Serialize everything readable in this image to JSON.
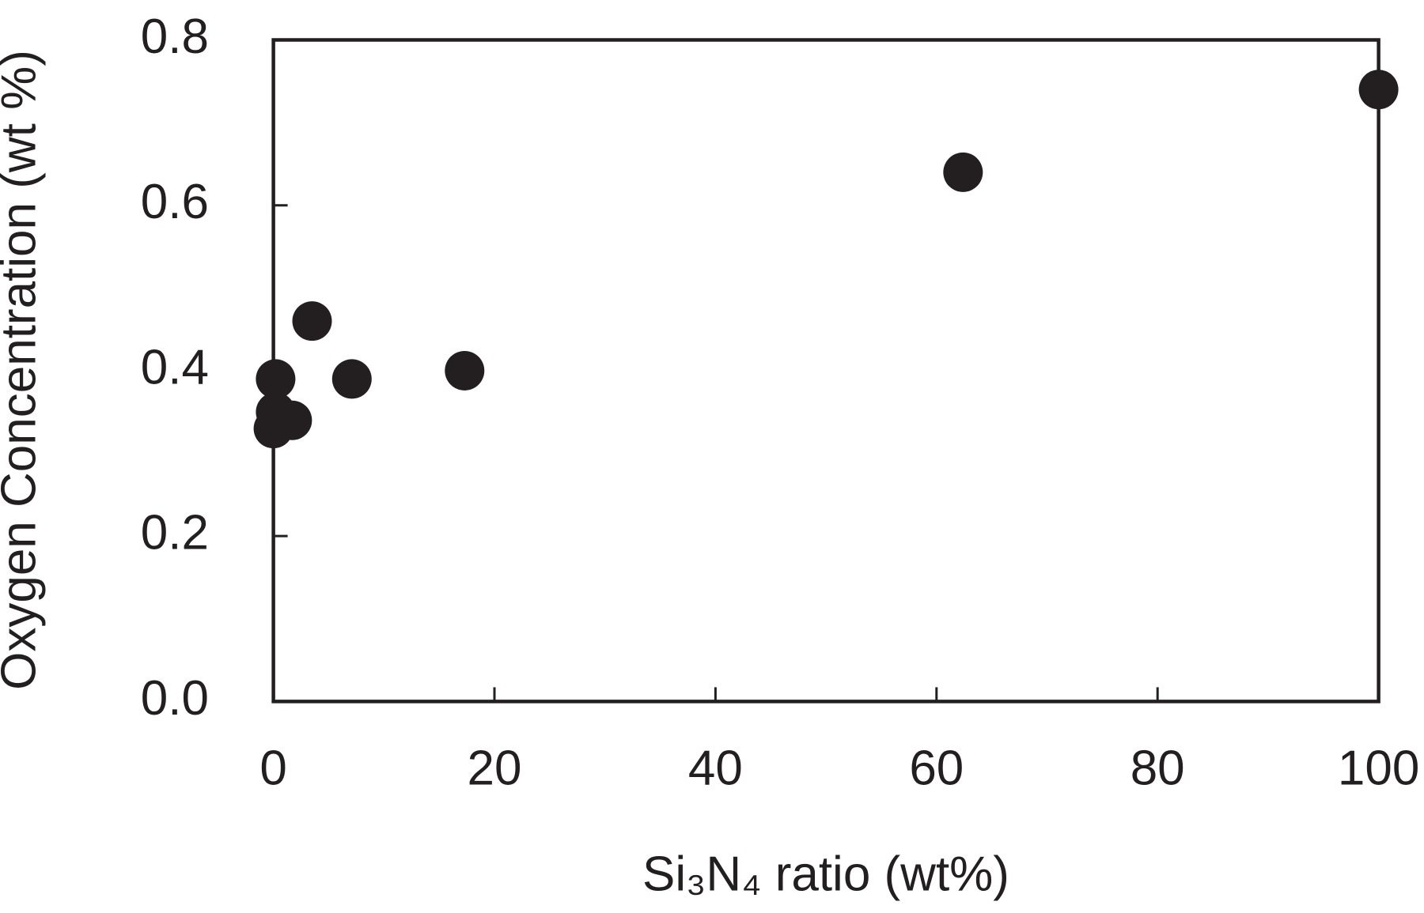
{
  "chart_data": {
    "type": "scatter",
    "x_label": "Si₃N₄ ratio (wt%)",
    "y_label": "Oxygen Concentration (wt %)",
    "series": [
      {
        "color": "#231f20",
        "x": [
          100,
          62.4,
          3.5,
          7.1,
          17.3,
          0.2,
          0.2,
          1.7,
          0
        ],
        "values": [
          0.74,
          0.64,
          0.46,
          0.39,
          0.4,
          0.39,
          0.35,
          0.34,
          0.33
        ]
      }
    ],
    "xlim": [
      0,
      100
    ],
    "xticks": [
      0,
      20,
      40,
      60,
      80,
      100
    ],
    "ylim": [
      0,
      0.8
    ],
    "yticks": [
      {
        "value": 0,
        "label": "0.0"
      },
      0.2,
      0.4,
      0.6,
      0.8
    ],
    "grid": false
  }
}
